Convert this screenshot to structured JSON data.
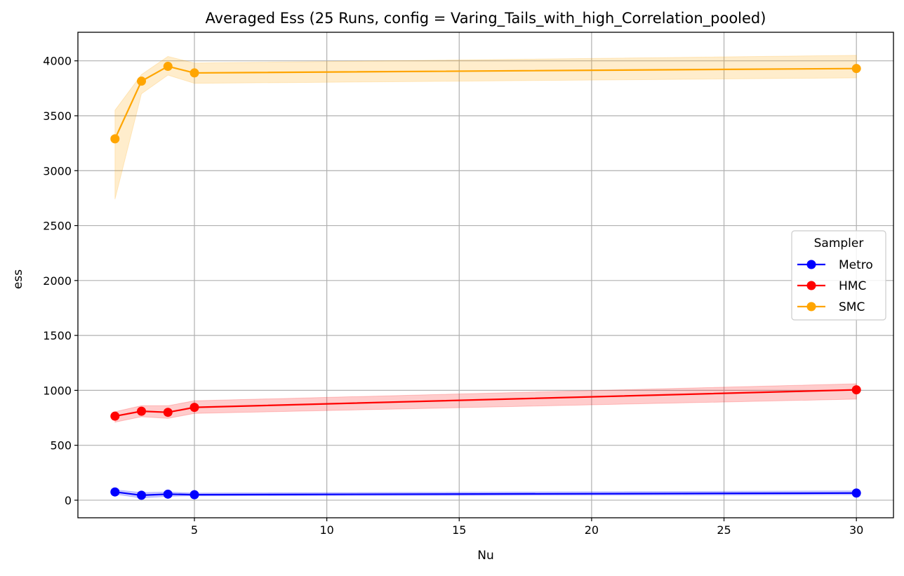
{
  "chart_data": {
    "type": "line",
    "title": "Averaged Ess (25 Runs, config = Varing_Tails_with_high_Correlation_pooled)",
    "xlabel": "Nu",
    "ylabel": "ess",
    "x": [
      2,
      3,
      4,
      5,
      30
    ],
    "xlim": [
      0.6,
      31.4
    ],
    "ylim": [
      -160,
      4260
    ],
    "xticks": [
      5,
      10,
      15,
      20,
      25,
      30
    ],
    "yticks": [
      0,
      500,
      1000,
      1500,
      2000,
      2500,
      3000,
      3500,
      4000
    ],
    "grid": true,
    "legend": {
      "title": "Sampler",
      "placement": "center-right"
    },
    "series": [
      {
        "name": "Metro",
        "color": "#0000ff",
        "values": [
          75,
          45,
          55,
          50,
          65
        ],
        "lower": [
          55,
          20,
          35,
          40,
          50
        ],
        "upper": [
          95,
          70,
          75,
          65,
          85
        ]
      },
      {
        "name": "HMC",
        "color": "#ff0000",
        "values": [
          765,
          810,
          800,
          845,
          1005
        ],
        "lower": [
          710,
          760,
          745,
          790,
          920
        ],
        "upper": [
          805,
          860,
          860,
          905,
          1060
        ]
      },
      {
        "name": "SMC",
        "color": "#ffa500",
        "values": [
          3290,
          3815,
          3950,
          3890,
          3930
        ],
        "lower": [
          2740,
          3700,
          3870,
          3795,
          3845
        ],
        "upper": [
          3550,
          3875,
          4040,
          3980,
          4050
        ]
      }
    ]
  }
}
